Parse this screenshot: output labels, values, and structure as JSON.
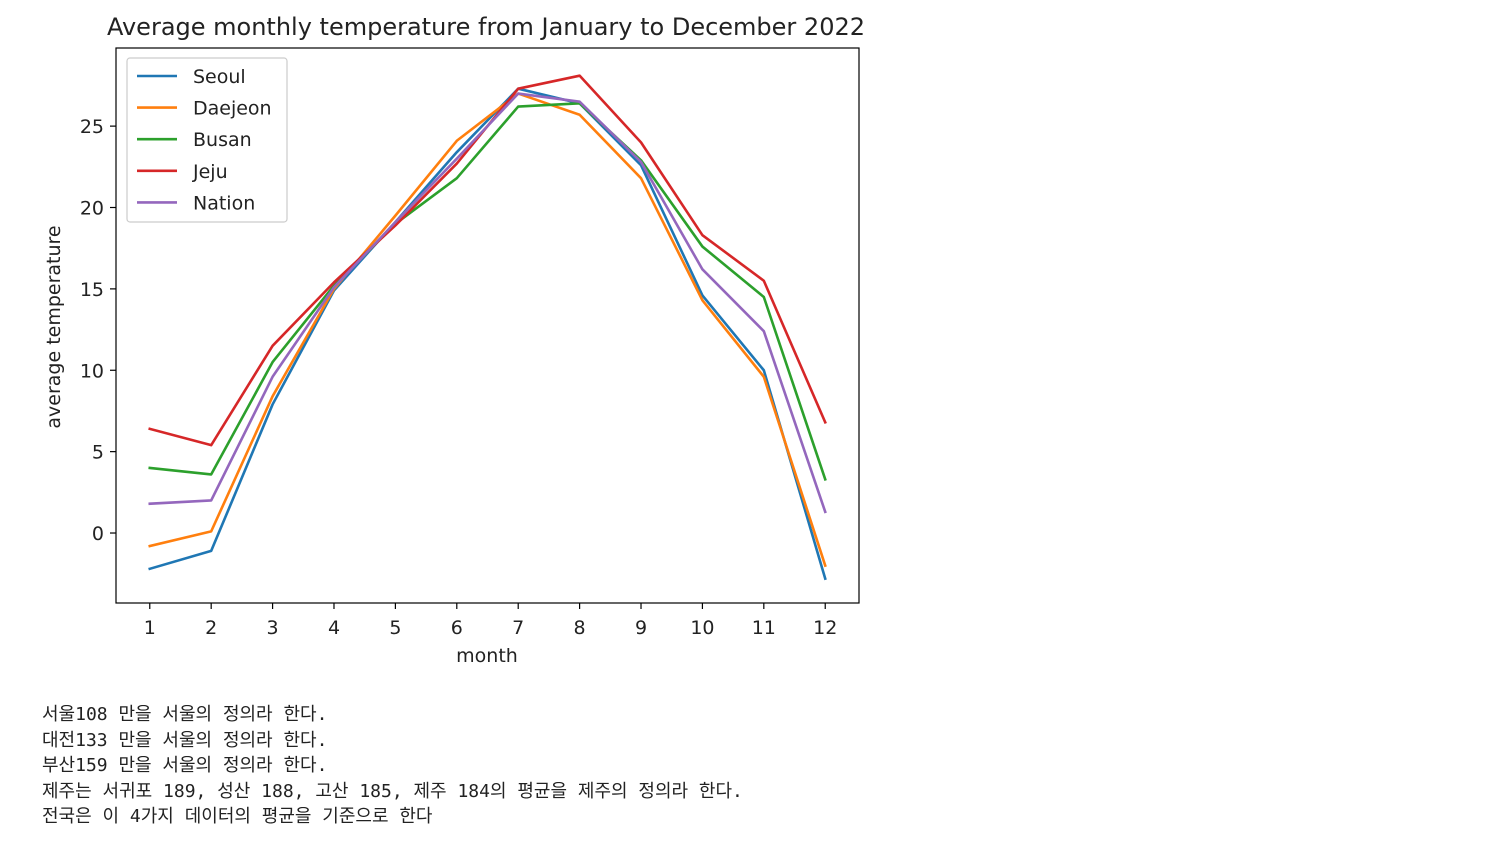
{
  "chart_data": {
    "type": "line",
    "title": "Average monthly temperature from January to December 2022",
    "xlabel": "month",
    "ylabel": "average temperature",
    "x": [
      1,
      2,
      3,
      4,
      5,
      6,
      7,
      8,
      9,
      10,
      11,
      12
    ],
    "xticks": [
      "1",
      "2",
      "3",
      "4",
      "5",
      "6",
      "7",
      "8",
      "9",
      "10",
      "11",
      "12"
    ],
    "yticks": [
      0,
      5,
      10,
      15,
      20,
      25
    ],
    "xlim": [
      0.45,
      12.55
    ],
    "ylim": [
      -4.3,
      29.8
    ],
    "grid": false,
    "legend_position": "upper-left",
    "series": [
      {
        "name": "Seoul",
        "color": "#1f77b4",
        "values": [
          -2.2,
          -1.1,
          7.9,
          14.9,
          19.1,
          23.4,
          27.3,
          26.4,
          22.6,
          14.6,
          10.0,
          -2.8
        ]
      },
      {
        "name": "Daejeon",
        "color": "#ff7f0e",
        "values": [
          -0.8,
          0.1,
          8.4,
          15.0,
          19.5,
          24.1,
          27.0,
          25.7,
          21.8,
          14.3,
          9.6,
          -2.0
        ]
      },
      {
        "name": "Busan",
        "color": "#2ca02c",
        "values": [
          4.0,
          3.6,
          10.5,
          15.2,
          19.0,
          21.8,
          26.2,
          26.4,
          22.9,
          17.6,
          14.5,
          3.3
        ]
      },
      {
        "name": "Jeju",
        "color": "#d62728",
        "values": [
          6.4,
          5.4,
          11.5,
          15.4,
          18.9,
          22.7,
          27.3,
          28.1,
          24.0,
          18.3,
          15.5,
          6.8
        ]
      },
      {
        "name": "Nation",
        "color": "#9467bd",
        "values": [
          1.8,
          2.0,
          9.6,
          15.1,
          19.1,
          23.0,
          27.0,
          26.5,
          22.8,
          16.2,
          12.4,
          1.3
        ]
      }
    ]
  },
  "notes": [
    "서울108 만을 서울의 정의라 한다.",
    "대전133 만을 서울의 정의라 한다.",
    "부산159 만을 서울의 정의라 한다.",
    "제주는 서귀포 189, 성산 188, 고산 185, 제주 184의 평균을 제주의 정의라 한다.",
    "전국은 이 4가지 데이터의 평균을 기준으로 한다"
  ]
}
